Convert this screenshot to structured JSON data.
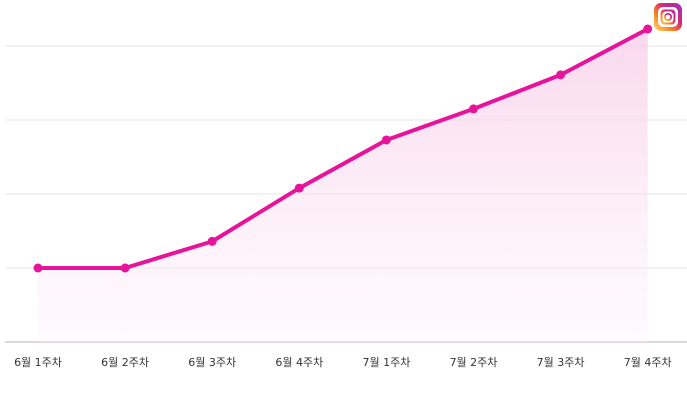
{
  "chart_data": {
    "type": "line",
    "categories": [
      "6월 1주차",
      "6월 2주차",
      "6월 3주차",
      "6월 4주차",
      "7월 1주차",
      "7월 2주차",
      "7월 3주차",
      "7월 4주차"
    ],
    "series": [
      {
        "color": "#e6149b",
        "values": [
          1.0,
          1.0,
          1.36,
          2.08,
          2.73,
          3.15,
          3.61,
          4.23
        ]
      }
    ],
    "ylim": [
      0,
      4.5
    ],
    "yticks": [
      0,
      1,
      2,
      3,
      4
    ],
    "grid": true
  }
}
